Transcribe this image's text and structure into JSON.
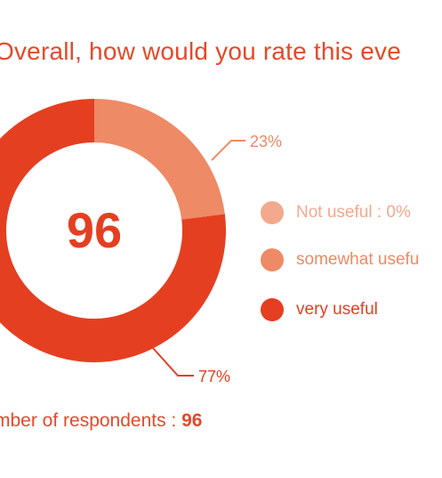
{
  "title": "Overall, how would you rate this eve",
  "center_value": "96",
  "footer": {
    "label": "mber of respondents : ",
    "value": "96"
  },
  "legend": [
    {
      "label": "Not useful : 0%",
      "color": "#f2a98e"
    },
    {
      "label": "somewhat usefu",
      "color": "#ee8a66"
    },
    {
      "label": "very useful",
      "color": "#e53f21"
    }
  ],
  "chart_data": {
    "type": "pie",
    "categories": [
      "Not useful",
      "somewhat useful",
      "very useful"
    ],
    "values": [
      0,
      23,
      77
    ],
    "colors": [
      "#f2a98e",
      "#ee8a66",
      "#e53f21"
    ],
    "data_labels": [
      "0%",
      "23%",
      "77%"
    ],
    "donut": true
  }
}
